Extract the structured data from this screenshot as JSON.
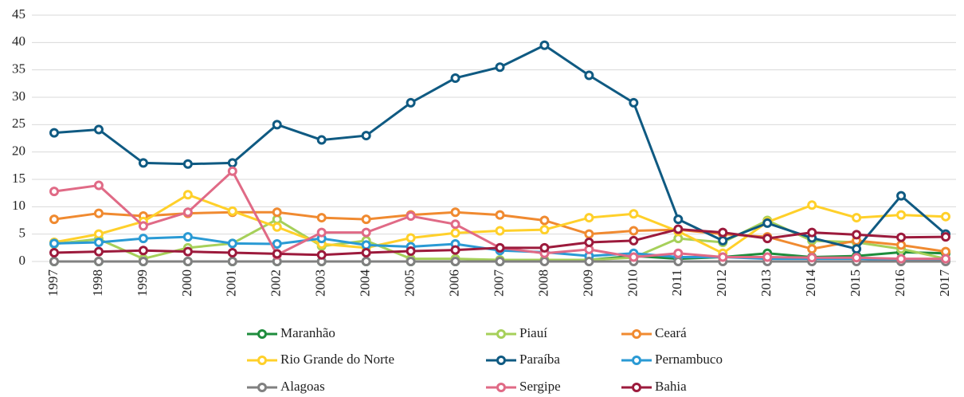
{
  "chart_data": {
    "type": "line",
    "categories": [
      "1997",
      "1998",
      "1999",
      "2000",
      "2001",
      "2002",
      "2003",
      "2004",
      "2005",
      "2006",
      "2007",
      "2008",
      "2009",
      "2010",
      "2011",
      "2012",
      "2013",
      "2014",
      "2015",
      "2016",
      "2017"
    ],
    "ylim": [
      0,
      45
    ],
    "yticks": [
      0,
      5,
      10,
      15,
      20,
      25,
      30,
      35,
      40,
      45
    ],
    "grid": true,
    "series": [
      {
        "name": "Maranhão",
        "color": "#1e8c3c",
        "values": [
          0,
          0,
          0,
          0,
          0,
          0,
          0,
          0,
          0,
          0,
          0,
          0.1,
          0.3,
          1,
          0.5,
          0.8,
          1.5,
          0.8,
          1,
          1.7,
          1.5
        ]
      },
      {
        "name": "Piauí",
        "color": "#a6d05a",
        "values": [
          3.2,
          4.1,
          0.5,
          2.5,
          3.3,
          7.7,
          2.8,
          3.8,
          0.5,
          0.5,
          0.3,
          0.3,
          0.3,
          0.7,
          4.2,
          3.5,
          7.5,
          3.8,
          3.5,
          2.3,
          0.5
        ]
      },
      {
        "name": "Ceará",
        "color": "#f08a30",
        "values": [
          7.7,
          8.8,
          8.3,
          8.8,
          9,
          9,
          8,
          7.7,
          8.5,
          9,
          8.5,
          7.5,
          5,
          5.6,
          5.8,
          5,
          4.5,
          2.3,
          3.8,
          3,
          1.8
        ]
      },
      {
        "name": "Rio Grande do Norte",
        "color": "#ffd02a",
        "values": [
          3.5,
          5,
          7.3,
          12.2,
          9.2,
          6.3,
          3.2,
          2.5,
          4.3,
          5.2,
          5.6,
          5.8,
          8,
          8.7,
          5.5,
          1.5,
          7.2,
          10.3,
          8,
          8.5,
          8.2
        ]
      },
      {
        "name": "Paraíba",
        "color": "#0f5a82",
        "values": [
          23.5,
          24.1,
          18,
          17.8,
          18,
          25,
          22.2,
          23,
          29,
          33.5,
          35.5,
          39.5,
          34,
          29,
          7.7,
          3.8,
          7,
          4.3,
          2.3,
          12,
          5
        ]
      },
      {
        "name": "Pernambuco",
        "color": "#2a9ad4",
        "values": [
          3.3,
          3.5,
          4.2,
          4.5,
          3.3,
          3.2,
          4.2,
          3,
          2.7,
          3.2,
          2,
          1.7,
          1,
          1.5,
          0.8,
          0.8,
          0.5,
          0.5,
          0.5,
          0.3,
          0.3
        ]
      },
      {
        "name": "Alagoas",
        "color": "#808080",
        "values": [
          0,
          0,
          0,
          0,
          0,
          0,
          0,
          0,
          0,
          0,
          0,
          0,
          0,
          0,
          0,
          0,
          0,
          0,
          0,
          0,
          0
        ]
      },
      {
        "name": "Sergipe",
        "color": "#e06a86",
        "values": [
          12.8,
          13.9,
          6.5,
          9,
          16.5,
          1.2,
          5.3,
          5.3,
          8.3,
          6.8,
          2.5,
          1.5,
          2.2,
          0.8,
          1.5,
          0.8,
          0.8,
          0.7,
          0.7,
          0.5,
          0.5
        ]
      },
      {
        "name": "Bahia",
        "color": "#9c1a3c",
        "values": [
          1.6,
          1.8,
          2,
          1.8,
          1.6,
          1.4,
          1.2,
          1.6,
          1.9,
          2.1,
          2.5,
          2.5,
          3.5,
          3.8,
          5.9,
          5.3,
          4.2,
          5.3,
          4.9,
          4.4,
          4.5
        ]
      }
    ]
  }
}
